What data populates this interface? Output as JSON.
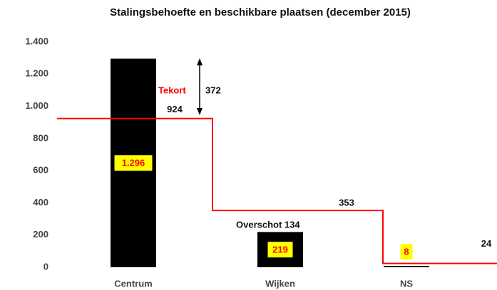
{
  "chart_data": {
    "type": "bar",
    "title": "Stalingsbehoefte en beschikbare plaatsen (december 2015)",
    "categories": [
      "Centrum",
      "Wijken",
      "NS"
    ],
    "values": [
      1296,
      219,
      8
    ],
    "value_labels": [
      "1.296",
      "219",
      "8"
    ],
    "color": "#000000",
    "label_box_color": "#ffff00",
    "label_text_color": "#ff0000",
    "line_values": [
      924,
      353,
      24
    ],
    "line_color": "#ff0000",
    "ylim": [
      0,
      1400
    ],
    "yticks": [
      0,
      200,
      400,
      600,
      800,
      {
        "value": 1000,
        "label": "1.000"
      },
      {
        "value": 1200,
        "label": "1.200"
      },
      {
        "value": 1400,
        "label": "1.400"
      }
    ],
    "grid": false,
    "annotations": {
      "shortage_label": "Tekort",
      "shortage_value": "372",
      "surplus": "Overschot 134"
    }
  }
}
